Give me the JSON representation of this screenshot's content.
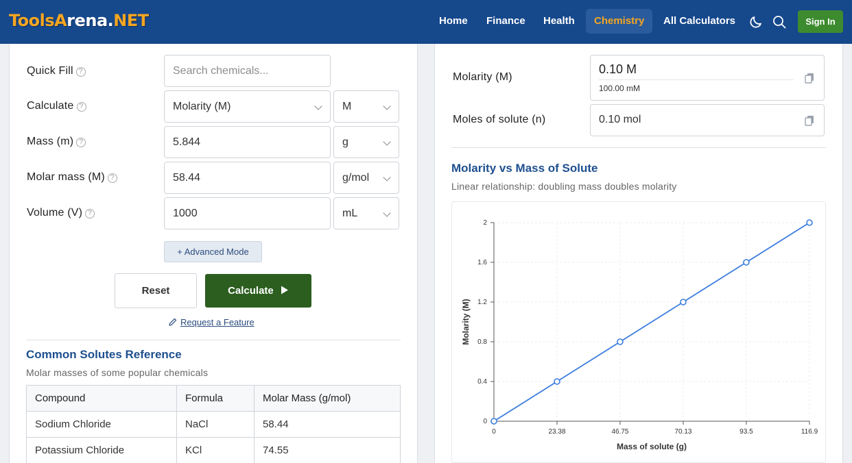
{
  "header": {
    "logo_left": "ToolsA",
    "logo_mid": "rena.",
    "logo_right": "NET",
    "nav": [
      "Home",
      "Finance",
      "Health",
      "Chemistry",
      "All Calculators"
    ],
    "active_nav": "Chemistry",
    "sign_in": "Sign In",
    "icons": [
      "moon-icon",
      "search-icon"
    ]
  },
  "form": {
    "quick_fill": {
      "label": "Quick Fill",
      "placeholder": "Search chemicals..."
    },
    "calculate": {
      "label": "Calculate",
      "value": "Molarity (M)",
      "unit": "M"
    },
    "mass": {
      "label": "Mass (m)",
      "value": "5.844",
      "unit": "g"
    },
    "molar_mass": {
      "label": "Molar mass (M)",
      "value": "58.44",
      "unit": "g/mol"
    },
    "volume": {
      "label": "Volume (V)",
      "value": "1000",
      "unit": "mL"
    },
    "help_glyph": "?",
    "advanced": "+ Advanced Mode",
    "reset": "Reset",
    "calculate_btn": "Calculate",
    "request": "Request a Feature"
  },
  "reference": {
    "title": "Common Solutes Reference",
    "subtitle": "Molar masses of some popular chemicals",
    "columns": [
      "Compound",
      "Formula",
      "Molar Mass (g/mol)"
    ],
    "rows": [
      [
        "Sodium Chloride",
        "NaCl",
        "58.44"
      ],
      [
        "Potassium Chloride",
        "KCl",
        "74.55"
      ]
    ]
  },
  "results": {
    "molarity": {
      "label": "Molarity (M)",
      "value": "0.10 M",
      "sub": "100.00 mM"
    },
    "moles": {
      "label": "Moles of solute (n)",
      "value": "0.10 mol"
    }
  },
  "chart_section": {
    "title": "Molarity vs Mass of Solute",
    "subtitle": "Linear relationship: doubling mass doubles molarity"
  },
  "colors": {
    "header": "#16488c",
    "accent": "#f5a623",
    "calc_button": "#2b5e1f",
    "sign_in": "#3d8b2f",
    "line": "#3b7ddd"
  },
  "chart_data": {
    "type": "line",
    "x": [
      0,
      23.38,
      46.75,
      70.13,
      93.5,
      116.9
    ],
    "x_tick_labels": [
      "0",
      "23.38",
      "46.75",
      "70.13",
      "93.5",
      "116.9"
    ],
    "series": [
      {
        "values": [
          0,
          0.4,
          0.8,
          1.2,
          1.6,
          2
        ]
      }
    ],
    "y_ticks": [
      0,
      0.4,
      0.8,
      1.2,
      1.6,
      2
    ],
    "y_tick_labels": [
      "0",
      "0.4",
      "0.8",
      "1.2",
      "1.6",
      "2"
    ],
    "xlabel": "Mass of solute (g)",
    "ylabel": "Molarity (M)",
    "xlim": [
      0,
      116.9
    ],
    "ylim": [
      0,
      2
    ],
    "grid": true
  }
}
